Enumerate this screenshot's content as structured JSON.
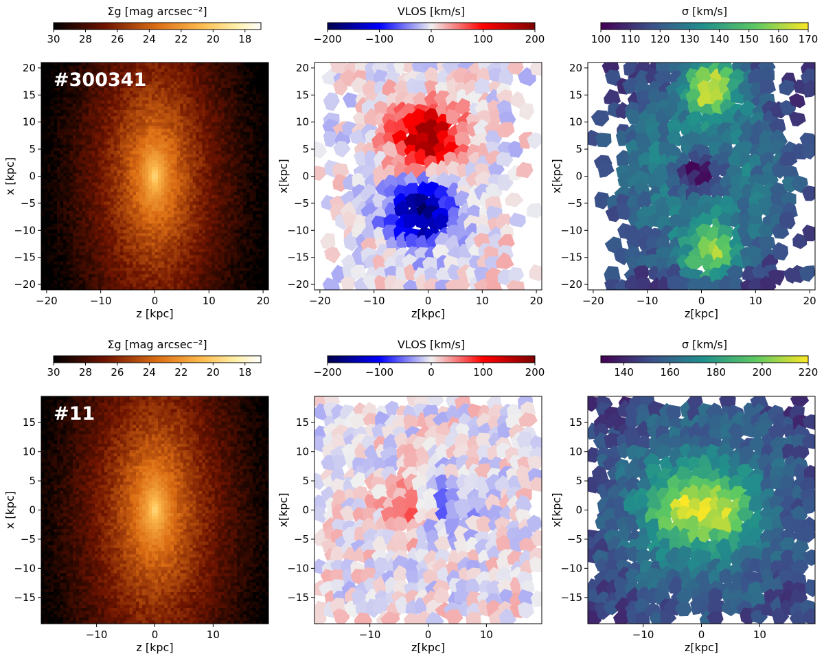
{
  "chart_data": [
    {
      "type": "heatmap",
      "id": "r0c0",
      "title": "",
      "galaxy_id": "#300341",
      "colorbar": {
        "label": "Σ_g [mag arcsec^-2]",
        "label_text": "Σg [mag arcsec⁻²]",
        "range": [
          30,
          17
        ],
        "ticks": [
          "30",
          "28",
          "26",
          "24",
          "22",
          "20",
          "18"
        ],
        "colormap": "afmhot_r"
      },
      "xlabel": "z [kpc]",
      "ylabel": "x [kpc]",
      "xlim": [
        -21,
        21
      ],
      "ylim": [
        -21,
        21
      ],
      "xticks": [
        "−20",
        "−10",
        "0",
        "10",
        "20"
      ],
      "yticks": [
        "−20",
        "−15",
        "−10",
        "−5",
        "0",
        "5",
        "10",
        "15",
        "20"
      ],
      "field": "surface_brightness"
    },
    {
      "type": "heatmap",
      "id": "r0c1",
      "title": "",
      "colorbar": {
        "label": "V_LOS [km/s]",
        "label_text": "VLOS [km/s]",
        "range": [
          -200,
          200
        ],
        "ticks": [
          "−200",
          "−100",
          "0",
          "100",
          "200"
        ],
        "colormap": "seismic"
      },
      "xlabel": "z[kpc]",
      "ylabel": "x[kpc]",
      "xlim": [
        -21,
        21
      ],
      "ylim": [
        -21,
        21
      ],
      "xticks": [
        "−20",
        "−10",
        "0",
        "10",
        "20"
      ],
      "yticks": [
        "−20",
        "−15",
        "−10",
        "−5",
        "0",
        "5",
        "10",
        "15",
        "20"
      ],
      "field": "velocity",
      "features": [
        {
          "z": 0,
          "x": 7,
          "value": 170
        },
        {
          "z": -1,
          "x": -7,
          "value": -170
        }
      ]
    },
    {
      "type": "heatmap",
      "id": "r0c2",
      "title": "",
      "colorbar": {
        "label": "σ [km/s]",
        "label_text": "σ [km/s]",
        "range": [
          100,
          170
        ],
        "ticks": [
          "100",
          "110",
          "120",
          "130",
          "140",
          "150",
          "160",
          "170"
        ],
        "colormap": "viridis"
      },
      "xlabel": "z[kpc]",
      "ylabel": "x[kpc]",
      "xlim": [
        -21,
        21
      ],
      "ylim": [
        -21,
        21
      ],
      "xticks": [
        "−20",
        "−10",
        "0",
        "10",
        "20"
      ],
      "yticks": [
        "−20",
        "−15",
        "−10",
        "−5",
        "0",
        "5",
        "10",
        "15",
        "20"
      ],
      "field": "dispersion",
      "features": [
        {
          "z": 0,
          "x": 0,
          "value": 105
        },
        {
          "z": 2,
          "x": 16,
          "value": 168
        },
        {
          "z": 2,
          "x": -14,
          "value": 160
        }
      ]
    },
    {
      "type": "heatmap",
      "id": "r1c0",
      "title": "",
      "galaxy_id": "#11",
      "colorbar": {
        "label": "Σ_g [mag arcsec^-2]",
        "label_text": "Σg [mag arcsec⁻²]",
        "range": [
          30,
          17
        ],
        "ticks": [
          "30",
          "28",
          "26",
          "24",
          "22",
          "20",
          "18"
        ],
        "colormap": "afmhot_r"
      },
      "xlabel": "z [kpc]",
      "ylabel": "x [kpc]",
      "xlim": [
        -19.5,
        19.5
      ],
      "ylim": [
        -19.5,
        19.5
      ],
      "xticks": [
        "−10",
        "0",
        "10"
      ],
      "yticks": [
        "−15",
        "−10",
        "−5",
        "0",
        "5",
        "10",
        "15"
      ],
      "field": "surface_brightness"
    },
    {
      "type": "heatmap",
      "id": "r1c1",
      "title": "",
      "colorbar": {
        "label": "V_LOS [km/s]",
        "label_text": "VLOS [km/s]",
        "range": [
          -200,
          200
        ],
        "ticks": [
          "−200",
          "−100",
          "0",
          "100",
          "200"
        ],
        "colormap": "seismic"
      },
      "xlabel": "z[kpc]",
      "ylabel": "x[kpc]",
      "xlim": [
        -19.5,
        19.5
      ],
      "ylim": [
        -19.5,
        19.5
      ],
      "xticks": [
        "−10",
        "0",
        "10"
      ],
      "yticks": [
        "−15",
        "−10",
        "−5",
        "0",
        "5",
        "10",
        "15"
      ],
      "field": "velocity",
      "features": [
        {
          "z": -3,
          "x": 0,
          "value": 60
        },
        {
          "z": 3,
          "x": 0,
          "value": -60
        }
      ]
    },
    {
      "type": "heatmap",
      "id": "r1c2",
      "title": "",
      "colorbar": {
        "label": "σ [km/s]",
        "label_text": "σ [km/s]",
        "range": [
          130,
          220
        ],
        "ticks": [
          "140",
          "160",
          "180",
          "200",
          "220"
        ],
        "colormap": "viridis"
      },
      "xlabel": "z[kpc]",
      "ylabel": "x[kpc]",
      "xlim": [
        -19.5,
        19.5
      ],
      "ylim": [
        -19.5,
        19.5
      ],
      "xticks": [
        "−10",
        "0",
        "10"
      ],
      "yticks": [
        "−15",
        "−10",
        "−5",
        "0",
        "5",
        "10",
        "15"
      ],
      "field": "dispersion",
      "features": [
        {
          "z": -3,
          "x": 0,
          "value": 215
        },
        {
          "z": 3,
          "x": 0,
          "value": 215
        }
      ]
    }
  ]
}
